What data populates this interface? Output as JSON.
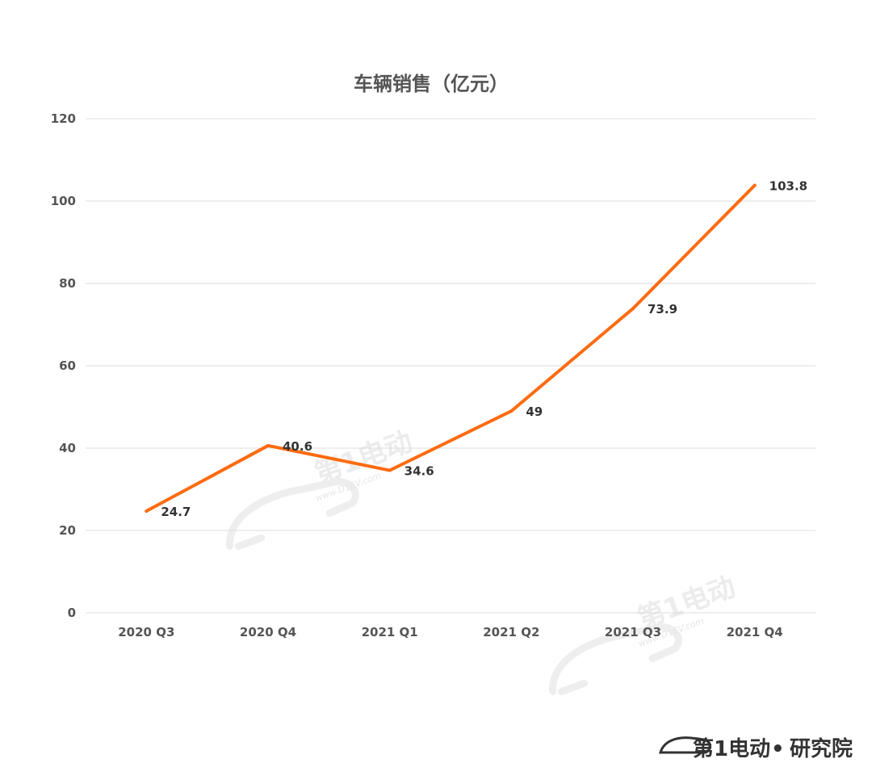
{
  "chart_data": {
    "type": "line",
    "title": "车辆销售（亿元）",
    "categories": [
      "2020 Q3",
      "2020 Q4",
      "2021 Q1",
      "2021 Q2",
      "2021 Q3",
      "2021 Q4"
    ],
    "series": [
      {
        "values": [
          24.7,
          40.6,
          34.6,
          49,
          73.9,
          103.8
        ]
      }
    ],
    "data_labels": [
      "24.7",
      "40.6",
      "34.6",
      "49",
      "73.9",
      "103.8"
    ],
    "ylim": [
      0,
      120
    ],
    "yticks": [
      0,
      20,
      40,
      60,
      80,
      100,
      120
    ],
    "grid": true,
    "line_color": "#ff6b0f",
    "grid_color": "#dddddd"
  },
  "watermark": {
    "text": "第1电动",
    "url": "www.D1EV.com"
  },
  "brand": {
    "name": "第1电动",
    "separator": "•",
    "suffix": "研究院",
    "accent_color": "#ff6b0f"
  }
}
